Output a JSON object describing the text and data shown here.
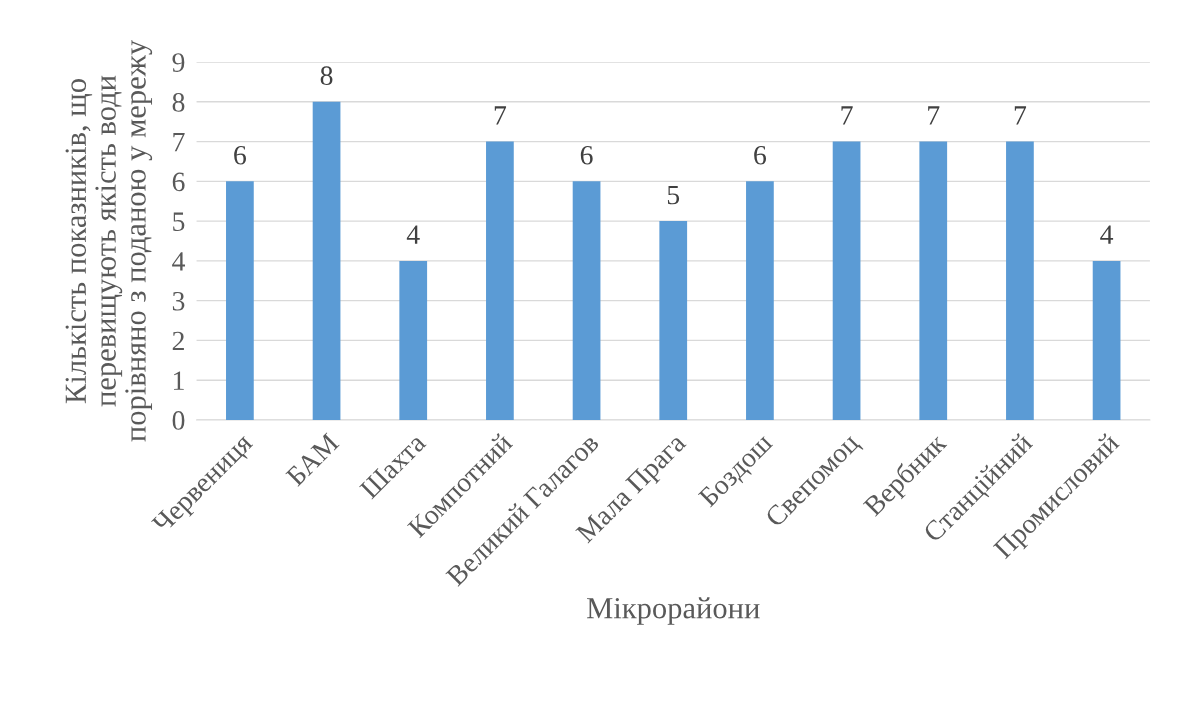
{
  "chart_data": {
    "type": "bar",
    "xlabel": "Мікрорайони",
    "ylabel": "Кількість показників, що\nперевищують якість води\nпорівняно з поданою у мережу",
    "categories": [
      "Червениця",
      "БАМ",
      "Шахта",
      "Компотний",
      "Великий Галагов",
      "Мала Прага",
      "Боздош",
      "Свепомоц",
      "Вербник",
      "Станційний",
      "Промисловий"
    ],
    "values": [
      6,
      8,
      4,
      7,
      6,
      5,
      6,
      7,
      7,
      7,
      4
    ],
    "color": "#5b9bd5",
    "ylim": [
      0,
      9
    ],
    "yticks": [
      0,
      1,
      2,
      3,
      4,
      5,
      6,
      7,
      8,
      9
    ],
    "grid": "y",
    "data_labels": true,
    "legend": false
  }
}
